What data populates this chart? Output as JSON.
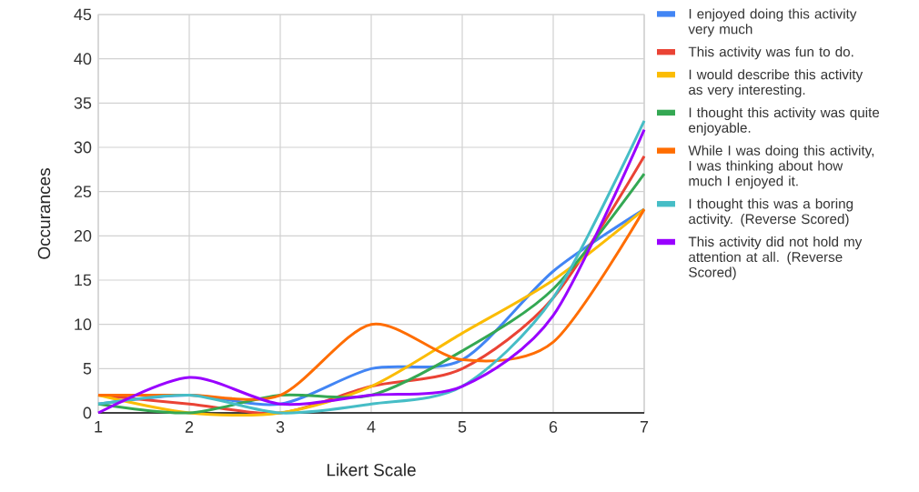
{
  "chart_data": {
    "type": "line",
    "xlabel": "Likert Scale",
    "ylabel": "Occurances",
    "x": [
      1,
      2,
      3,
      4,
      5,
      6,
      7
    ],
    "series": [
      {
        "name": "I enjoyed doing this activity very much",
        "color": "#4285f4",
        "values": [
          1,
          2,
          1,
          5,
          6,
          16,
          23
        ]
      },
      {
        "name": "This activity was fun to do.",
        "color": "#ea4335",
        "values": [
          2,
          1,
          0,
          3,
          5,
          13,
          29
        ]
      },
      {
        "name": "I would describe this activity as very interesting.",
        "color": "#fbbc04",
        "values": [
          2,
          0,
          0,
          3,
          9,
          15,
          23
        ]
      },
      {
        "name": "I thought this activity was quite enjoyable.",
        "color": "#34a853",
        "values": [
          1,
          0,
          2,
          2,
          7,
          14,
          27
        ]
      },
      {
        "name": "While I was doing this activity, I was thinking about how much I enjoyed it.",
        "color": "#ff6d01",
        "values": [
          2,
          2,
          2,
          10,
          6,
          8,
          23
        ]
      },
      {
        "name": "I thought this was a boring activity. (Reverse Scored)",
        "color": "#46bdc6",
        "values": [
          1,
          2,
          0,
          1,
          3,
          13,
          33
        ]
      },
      {
        "name": "This activity did not hold my attention at all. (Reverse Scored)",
        "color": "#9900ff",
        "values": [
          0,
          4,
          1,
          2,
          3,
          11,
          32
        ]
      }
    ],
    "xlim": [
      1,
      7
    ],
    "xticks": [
      1,
      2,
      3,
      4,
      5,
      6,
      7
    ],
    "ylim": [
      0,
      45
    ],
    "yticks": [
      0,
      5,
      10,
      15,
      20,
      25,
      30,
      35,
      40,
      45
    ],
    "grid": true,
    "legend": "right",
    "marker": "none",
    "line_style": "solid"
  }
}
